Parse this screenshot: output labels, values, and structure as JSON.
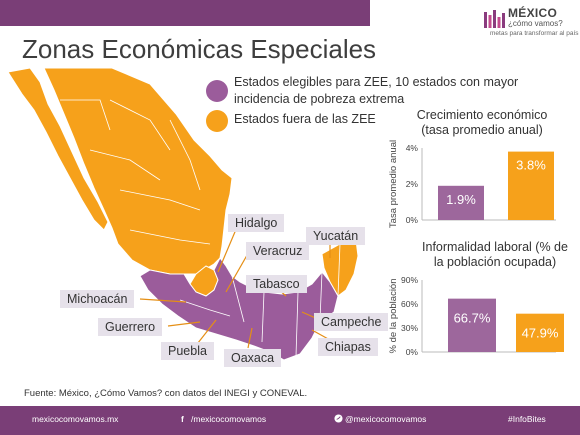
{
  "title": "Zonas Económicas Especiales",
  "logo": {
    "main": "MÉXICO",
    "sub": "¿cómo vamos?",
    "tagline": "metas para transformar al país"
  },
  "colors": {
    "purple": "#9b5c9b",
    "orange": "#f6a11b",
    "bar_purple": "#9d679c",
    "bar_orange": "#f6a11b",
    "topbar": "#7a3e77",
    "footer": "#7a3e77"
  },
  "legend": {
    "eligible": "Estados elegibles para ZEE, 10 estados con mayor incidencia de pobreza extrema",
    "outside": "Estados fuera de las ZEE"
  },
  "state_labels": {
    "hidalgo": "Hidalgo",
    "yucatan": "Yucatán",
    "veracruz": "Veracruz",
    "tabasco": "Tabasco",
    "michoacan": "Michoacán",
    "campeche": "Campeche",
    "guerrero": "Guerrero",
    "chiapas": "Chiapas",
    "puebla": "Puebla",
    "oaxaca": "Oaxaca"
  },
  "chart_data": [
    {
      "type": "bar",
      "title": "Crecimiento económico (tasa promedio anual)",
      "ylabel": "Tasa promedio anual",
      "ylim": [
        0,
        4
      ],
      "yticks": [
        "0%",
        "2%",
        "4%"
      ],
      "tick_values": [
        0,
        2,
        4
      ],
      "categories": [
        "Estados elegibles para ZEE",
        "Estados fuera de las ZEE"
      ],
      "values": [
        1.9,
        3.8
      ],
      "labels": [
        "1.9%",
        "3.8%"
      ],
      "colors": [
        "#9d679c",
        "#f6a11b"
      ],
      "grid": false
    },
    {
      "type": "bar",
      "title": "Informalidad laboral (% de la población ocupada)",
      "ylabel": "% de la población",
      "ylim": [
        0,
        90
      ],
      "yticks": [
        "0%",
        "30%",
        "60%",
        "90%"
      ],
      "tick_values": [
        0,
        30,
        60,
        90
      ],
      "categories": [
        "Estados elegibles para ZEE",
        "Estados fuera de las ZEE"
      ],
      "values": [
        66.7,
        47.9
      ],
      "labels": [
        "66.7%",
        "47.9%"
      ],
      "colors": [
        "#9d679c",
        "#f6a11b"
      ],
      "grid": false
    }
  ],
  "source": "Fuente: México, ¿Cómo Vamos? con datos del INEGI y CONEVAL.",
  "footer": {
    "website": "mexicocomovamos.mx",
    "facebook": "/mexicocomovamos",
    "twitter": "@mexicocomovamos",
    "hashtag": "#InfoBites"
  }
}
